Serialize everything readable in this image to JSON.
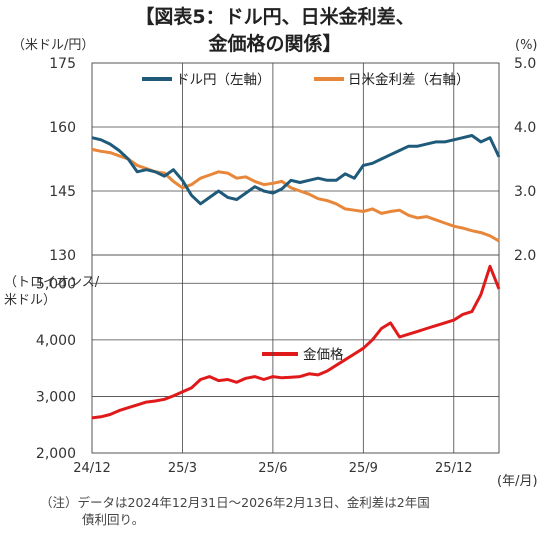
{
  "title_line1": "【図表5：ドル円、日米金利差、",
  "title_line2": "金価格の関係】",
  "note_prefix": "（注）",
  "note_line1": "データは2024年12月31日～2026年2月13日、金利差は2年国",
  "note_line2": "債利回り。",
  "colors": {
    "usdjpy": "#1f5a7a",
    "spread": "#e8873a",
    "gold": "#e01a1a",
    "axis": "#444444",
    "grid": "#d0d0d0"
  },
  "chart_data": [
    {
      "type": "line",
      "left_axis_unit": "（米ドル/円）",
      "right_axis_unit": "(%)",
      "left_ylim": [
        130,
        175
      ],
      "right_ylim": [
        2.0,
        5.0
      ],
      "left_ticks": [
        "175",
        "160",
        "145",
        "130"
      ],
      "right_ticks": [
        "5.0",
        "4.0",
        "3.0",
        "2.0"
      ],
      "x_categories": [
        "24/12",
        "25/3",
        "25/6",
        "25/9",
        "25/12"
      ],
      "x_start": 0,
      "x_end": 13.5,
      "series": [
        {
          "name": "ドル円（左軸）",
          "axis": "left",
          "x": [
            0,
            0.3,
            0.6,
            0.9,
            1.2,
            1.5,
            1.8,
            2.1,
            2.4,
            2.7,
            3.0,
            3.3,
            3.6,
            3.9,
            4.2,
            4.5,
            4.8,
            5.1,
            5.4,
            5.7,
            6.0,
            6.3,
            6.6,
            6.9,
            7.2,
            7.5,
            7.8,
            8.1,
            8.4,
            8.7,
            9.0,
            9.3,
            9.6,
            9.9,
            10.2,
            10.5,
            10.8,
            11.1,
            11.4,
            11.7,
            12.0,
            12.3,
            12.6,
            12.9,
            13.2,
            13.5
          ],
          "values": [
            157.5,
            157,
            156,
            154.5,
            152.5,
            149.5,
            150,
            149.5,
            148.5,
            150,
            147.5,
            144,
            142,
            143.5,
            145,
            143.5,
            143,
            144.5,
            146,
            145,
            144.5,
            145.5,
            147.5,
            147,
            147.5,
            148,
            147.5,
            147.5,
            149,
            148,
            151,
            151.5,
            152.5,
            153.5,
            154.5,
            155.5,
            155.5,
            156,
            156.5,
            156.5,
            157,
            157.5,
            158,
            156.5,
            157.5,
            153
          ]
        },
        {
          "name": "日米金利差（右軸）",
          "axis": "right",
          "x": [
            0,
            0.3,
            0.6,
            0.9,
            1.2,
            1.5,
            1.8,
            2.1,
            2.4,
            2.7,
            3.0,
            3.3,
            3.6,
            3.9,
            4.2,
            4.5,
            4.8,
            5.1,
            5.4,
            5.7,
            6.0,
            6.3,
            6.6,
            6.9,
            7.2,
            7.5,
            7.8,
            8.1,
            8.4,
            8.7,
            9.0,
            9.3,
            9.6,
            9.9,
            10.2,
            10.5,
            10.8,
            11.1,
            11.4,
            11.7,
            12.0,
            12.3,
            12.6,
            12.9,
            13.2,
            13.5
          ],
          "values": [
            3.65,
            3.62,
            3.6,
            3.55,
            3.5,
            3.4,
            3.35,
            3.3,
            3.28,
            3.15,
            3.05,
            3.1,
            3.2,
            3.25,
            3.3,
            3.28,
            3.2,
            3.22,
            3.15,
            3.1,
            3.12,
            3.15,
            3.05,
            3.0,
            2.95,
            2.88,
            2.85,
            2.8,
            2.72,
            2.7,
            2.68,
            2.72,
            2.65,
            2.68,
            2.7,
            2.62,
            2.58,
            2.6,
            2.55,
            2.5,
            2.45,
            2.42,
            2.38,
            2.35,
            2.3,
            2.22
          ]
        }
      ]
    },
    {
      "type": "line",
      "left_axis_unit_line1": "（トロイオンス/",
      "left_axis_unit_line2": "米ドル）",
      "ylim": [
        2000,
        5500
      ],
      "y_ticks": [
        "5,000",
        "4,000",
        "3,000",
        "2,000"
      ],
      "x_categories": [
        "24/12",
        "25/3",
        "25/6",
        "25/9",
        "25/12"
      ],
      "x_unit": "(年/月)",
      "x_start": 0,
      "x_end": 13.5,
      "series": [
        {
          "name": "金価格",
          "x": [
            0,
            0.3,
            0.6,
            0.9,
            1.2,
            1.5,
            1.8,
            2.1,
            2.4,
            2.7,
            3.0,
            3.3,
            3.6,
            3.9,
            4.2,
            4.5,
            4.8,
            5.1,
            5.4,
            5.7,
            6.0,
            6.3,
            6.6,
            6.9,
            7.2,
            7.5,
            7.8,
            8.1,
            8.4,
            8.7,
            9.0,
            9.3,
            9.6,
            9.9,
            10.2,
            10.5,
            10.8,
            11.1,
            11.4,
            11.7,
            12.0,
            12.3,
            12.6,
            12.9,
            13.2,
            13.5
          ],
          "values": [
            2620,
            2640,
            2680,
            2750,
            2800,
            2850,
            2900,
            2920,
            2950,
            3010,
            3080,
            3150,
            3300,
            3350,
            3280,
            3300,
            3250,
            3320,
            3350,
            3300,
            3350,
            3330,
            3340,
            3350,
            3400,
            3380,
            3450,
            3550,
            3650,
            3750,
            3850,
            4000,
            4200,
            4300,
            4050,
            4100,
            4150,
            4200,
            4250,
            4300,
            4350,
            4450,
            4500,
            4800,
            5300,
            4900
          ]
        }
      ]
    }
  ]
}
